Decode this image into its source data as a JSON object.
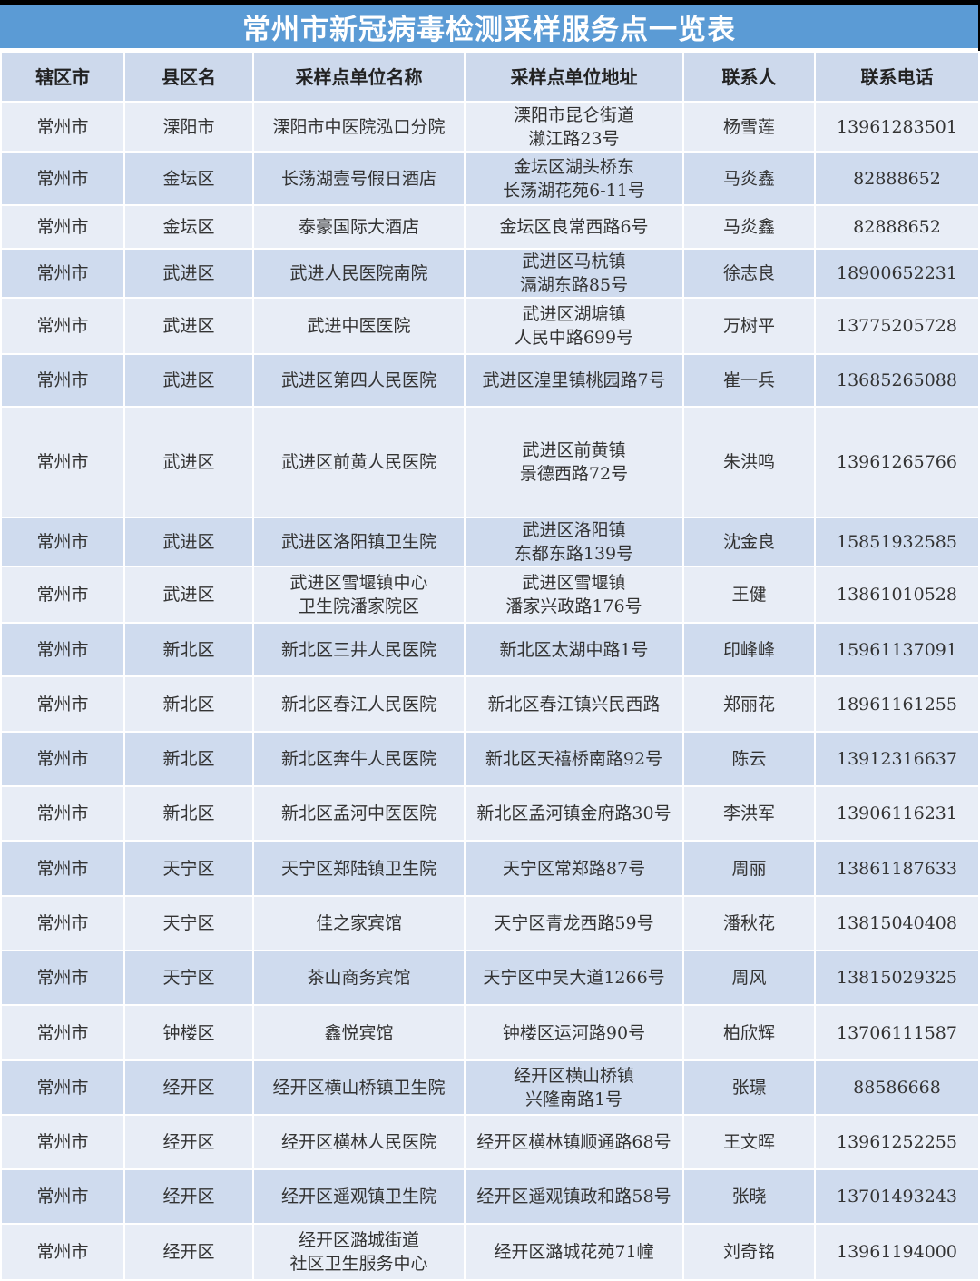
{
  "title": "常州市新冠病毒检测采样服务点一览表",
  "headers": [
    "辖区市",
    "县区名",
    "采样点单位名称",
    "采样点单位地址",
    "联系人",
    "联系电话"
  ],
  "rows": [
    [
      "常州市",
      "溧阳市",
      "溧阳市中医院泓口分院",
      "溧阳市昆仑街道\n濑江路23号",
      "杨雪莲",
      "13961283501"
    ],
    [
      "常州市",
      "金坛区",
      "长荡湖壹号假日酒店",
      "金坛区湖头桥东\n长荡湖花苑6-11号",
      "马炎鑫",
      "82888652"
    ],
    [
      "常州市",
      "金坛区",
      "泰豪国际大酒店",
      "金坛区良常西路6号",
      "马炎鑫",
      "82888652"
    ],
    [
      "常州市",
      "武进区",
      "武进人民医院南院",
      "武进区马杭镇\n滆湖东路85号",
      "徐志良",
      "18900652231"
    ],
    [
      "常州市",
      "武进区",
      "武进中医医院",
      "武进区湖塘镇\n人民中路699号",
      "万树平",
      "13775205728"
    ],
    [
      "常州市",
      "武进区",
      "武进区第四人民医院",
      "武进区湟里镇桃园路7号",
      "崔一兵",
      "13685265088"
    ],
    [
      "常州市",
      "武进区",
      "武进区前黄人民医院",
      "武进区前黄镇\n景德西路72号",
      "朱洪鸣",
      "13961265766"
    ],
    [
      "常州市",
      "武进区",
      "武进区洛阳镇卫生院",
      "武进区洛阳镇\n东都东路139号",
      "沈金良",
      "15851932585"
    ],
    [
      "常州市",
      "武进区",
      "武进区雪堰镇中心\n卫生院潘家院区",
      "武进区雪堰镇\n潘家兴政路176号",
      "王健",
      "13861010528"
    ],
    [
      "常州市",
      "新北区",
      "新北区三井人民医院",
      "新北区太湖中路1号",
      "印峰峰",
      "15961137091"
    ],
    [
      "常州市",
      "新北区",
      "新北区春江人民医院",
      "新北区春江镇兴民西路",
      "郑丽花",
      "18961161255"
    ],
    [
      "常州市",
      "新北区",
      "新北区奔牛人民医院",
      "新北区天禧桥南路92号",
      "陈云",
      "13912316637"
    ],
    [
      "常州市",
      "新北区",
      "新北区孟河中医医院",
      "新北区孟河镇金府路30号",
      "李洪军",
      "13906116231"
    ],
    [
      "常州市",
      "天宁区",
      "天宁区郑陆镇卫生院",
      "天宁区常郑路87号",
      "周丽",
      "13861187633"
    ],
    [
      "常州市",
      "天宁区",
      "佳之家宾馆",
      "天宁区青龙西路59号",
      "潘秋花",
      "13815040408"
    ],
    [
      "常州市",
      "天宁区",
      "茶山商务宾馆",
      "天宁区中吴大道1266号",
      "周风",
      "13815029325"
    ],
    [
      "常州市",
      "钟楼区",
      "鑫悦宾馆",
      "钟楼区运河路90号",
      "柏欣辉",
      "13706111587"
    ],
    [
      "常州市",
      "经开区",
      "经开区横山桥镇卫生院",
      "经开区横山桥镇\n兴隆南路1号",
      "张璟",
      "88586668"
    ],
    [
      "常州市",
      "经开区",
      "经开区横林人民医院",
      "经开区横林镇顺通路68号",
      "王文晖",
      "13961252255"
    ],
    [
      "常州市",
      "经开区",
      "经开区遥观镇卫生院",
      "经开区遥观镇政和路58号",
      "张晓",
      "13701493243"
    ],
    [
      "常州市",
      "经开区",
      "经开区潞城街道\n社区卫生服务中心",
      "经开区潞城花苑71幢",
      "刘奇铭",
      "13961194000"
    ]
  ],
  "colors": {
    "title_bg": "#5b9bd5",
    "header_bg": "#cdd9ec",
    "row_light": "#e8edf6",
    "row_dark": "#cfdbee"
  }
}
